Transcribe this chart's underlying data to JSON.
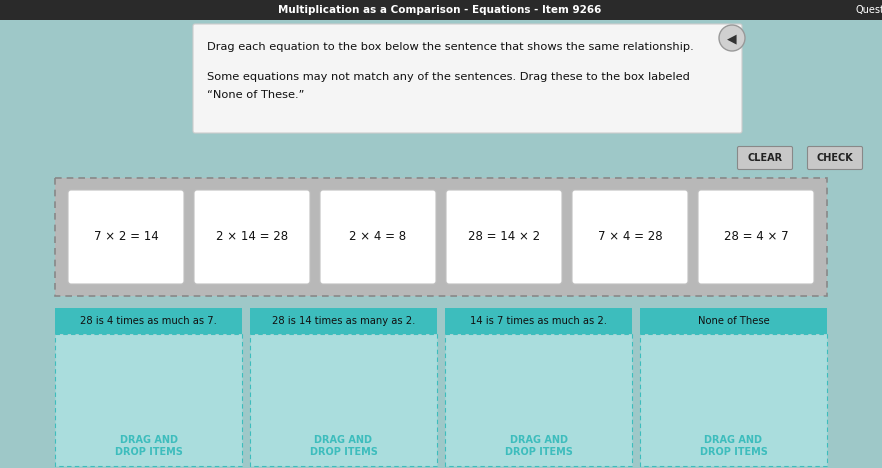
{
  "title_bar_text": "Multiplication as a Comparison - Equations - Item 9266",
  "title_bar_color": "#2a2a2a",
  "title_bar_text_color": "#ffffff",
  "bg_color": "#9ec8c8",
  "instruction_box_color": "#f5f5f5",
  "instruction_line1": "Drag each equation to the box below the sentence that shows the same relationship.",
  "instruction_line2": "Some equations may not match any of the sentences. Drag these to the box labeled",
  "instruction_line3": "“None of These.”",
  "equation_cards": [
    "7 × 2 = 14",
    "2 × 14 = 28",
    "2 × 4 = 8",
    "28 = 14 × 2",
    "7 × 4 = 28",
    "28 = 4 × 7"
  ],
  "card_bg": "#ffffff",
  "card_border": "#c0c0c0",
  "equation_area_bg": "#b8b8b8",
  "drop_categories": [
    "28 is 4 times as much as 7.",
    "28 is 14 times as many as 2.",
    "14 is 7 times as much as 2.",
    "None of These"
  ],
  "drop_header_bg": "#3dbdbd",
  "drop_body_bg": "#aadddd",
  "drop_text_color": "#111111",
  "drag_drop_text": "DRAG AND\nDROP ITEMS",
  "drag_drop_text_color": "#3dbdbd",
  "button_bg": "#c8c8c8",
  "button_text_color": "#222222",
  "question_label": "Questio"
}
